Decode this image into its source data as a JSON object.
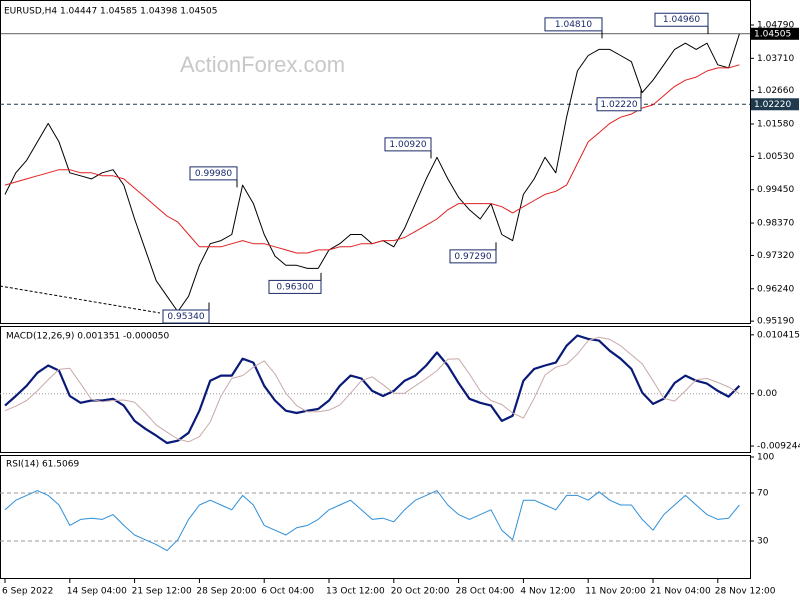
{
  "chart_data": [
    {
      "type": "line",
      "title": "EURUSD,H4  1.04447 1.04585 1.04398 1.04505",
      "watermark": "ActionForex.com",
      "ylim": [
        0.9513,
        1.056
      ],
      "yticks": [
        {
          "value": 0.9519,
          "label": "0.95190"
        },
        {
          "value": 0.9624,
          "label": "0.96240"
        },
        {
          "value": 0.9732,
          "label": "0.97320"
        },
        {
          "value": 0.9837,
          "label": "0.98370"
        },
        {
          "value": 0.9945,
          "label": "0.99450"
        },
        {
          "value": 1.0053,
          "label": "1.00530"
        },
        {
          "value": 1.0158,
          "label": "1.01580"
        },
        {
          "value": 1.0266,
          "label": "1.02660"
        },
        {
          "value": 1.0371,
          "label": "1.03710"
        },
        {
          "value": 1.0479,
          "label": "1.04790"
        }
      ],
      "levels": [
        {
          "value": 1.04505,
          "label": "1.04505",
          "color": "#000000",
          "style": "solid"
        },
        {
          "value": 1.0222,
          "label": "1.02220",
          "color": "#1e3a4c",
          "style": "dashed"
        }
      ],
      "annotations": [
        {
          "value": 1.0481,
          "label": "1.04810"
        },
        {
          "value": 1.0496,
          "label": "1.04960"
        },
        {
          "value": 1.0222,
          "label": "1.02220"
        },
        {
          "value": 1.0092,
          "label": "1.00920"
        },
        {
          "value": 0.9998,
          "label": "0.99980"
        },
        {
          "value": 0.9729,
          "label": "0.97290"
        },
        {
          "value": 0.963,
          "label": "0.96300"
        },
        {
          "value": 0.9534,
          "label": "0.95340"
        }
      ],
      "series": [
        {
          "color": "#000000",
          "values": [
            0.993,
            1.0,
            1.004,
            1.01,
            1.016,
            1.01,
            1.0,
            0.999,
            0.998,
            1.0,
            1.001,
            0.996,
            0.985,
            0.975,
            0.965,
            0.96,
            0.955,
            0.96,
            0.97,
            0.977,
            0.978,
            0.98,
            0.996,
            0.99,
            0.98,
            0.973,
            0.97,
            0.97,
            0.969,
            0.969,
            0.975,
            0.977,
            0.98,
            0.98,
            0.977,
            0.978,
            0.976,
            0.982,
            0.99,
            0.998,
            1.005,
            0.998,
            0.992,
            0.988,
            0.985,
            0.99,
            0.98,
            0.978,
            0.993,
            0.998,
            1.005,
            1.0,
            1.018,
            1.033,
            1.038,
            1.04,
            1.04,
            1.038,
            1.036,
            1.026,
            1.03,
            1.035,
            1.04,
            1.042,
            1.04,
            1.042,
            1.035,
            1.034,
            1.045
          ]
        },
        {
          "color": "#e02020",
          "values": [
            0.996,
            0.997,
            0.998,
            0.999,
            1.0,
            1.001,
            1.001,
            1.0,
            1.0,
            0.999,
            0.999,
            0.998,
            0.995,
            0.992,
            0.989,
            0.986,
            0.984,
            0.98,
            0.976,
            0.976,
            0.976,
            0.977,
            0.978,
            0.977,
            0.977,
            0.976,
            0.975,
            0.974,
            0.974,
            0.975,
            0.975,
            0.976,
            0.976,
            0.977,
            0.977,
            0.978,
            0.978,
            0.979,
            0.981,
            0.983,
            0.985,
            0.988,
            0.99,
            0.99,
            0.99,
            0.99,
            0.989,
            0.987,
            0.989,
            0.991,
            0.993,
            0.994,
            0.996,
            1.003,
            1.01,
            1.013,
            1.016,
            1.018,
            1.019,
            1.021,
            1.022,
            1.025,
            1.028,
            1.03,
            1.031,
            1.033,
            1.034,
            1.034,
            1.035
          ]
        }
      ]
    },
    {
      "type": "line",
      "title": "MACD(12,26,9) 0.001351 -0.000050",
      "ylim": [
        -0.0103,
        0.0118
      ],
      "yticks": [
        0.010415,
        {
          "value": 0,
          "label": "0.00"
        },
        -0.009244
      ],
      "levels": [
        {
          "value": 0,
          "color": "#9a9a9a",
          "style": "dotted"
        }
      ],
      "series": [
        {
          "color": "#0a1a78",
          "width": 2.2,
          "values": [
            -0.0021,
            -0.0004,
            0.0014,
            0.0037,
            0.005,
            0.0041,
            -0.0004,
            -0.0016,
            -0.0012,
            -0.0012,
            -0.0009,
            -0.0021,
            -0.0048,
            -0.0062,
            -0.0074,
            -0.0087,
            -0.0083,
            -0.0069,
            -0.003,
            0.0023,
            0.0032,
            0.0032,
            0.0062,
            0.0055,
            0.0014,
            -0.0012,
            -0.003,
            -0.0034,
            -0.003,
            -0.0027,
            -0.0012,
            0.0014,
            0.0032,
            0.0027,
            0.0005,
            -0.0004,
            0.0005,
            0.0023,
            0.0032,
            0.005,
            0.0073,
            0.005,
            0.0019,
            -0.0009,
            -0.0016,
            -0.0021,
            -0.0048,
            -0.0039,
            0.0023,
            0.0044,
            0.005,
            0.0055,
            0.0085,
            0.0103,
            0.0097,
            0.0094,
            0.0076,
            0.0062,
            0.0044,
            0.0002,
            -0.0018,
            -0.0009,
            0.0019,
            0.0032,
            0.0023,
            0.0018,
            0.0005,
            -0.0005,
            0.0014
          ]
        },
        {
          "color": "#c9a9a9",
          "width": 1,
          "values": [
            -0.003,
            -0.0022,
            -0.0012,
            0.0005,
            0.0025,
            0.0043,
            0.0045,
            0.0018,
            -0.001,
            -0.0014,
            -0.0012,
            -0.0011,
            -0.0015,
            -0.0034,
            -0.0055,
            -0.0068,
            -0.008,
            -0.0085,
            -0.0076,
            -0.005,
            -0.0004,
            0.0027,
            0.0032,
            0.0047,
            0.0058,
            0.0035,
            0.0001,
            -0.0021,
            -0.0032,
            -0.0032,
            -0.0029,
            -0.002,
            0.0001,
            0.0023,
            0.003,
            0.0016,
            0.0001,
            0.0001,
            0.0014,
            0.0027,
            0.0041,
            0.0061,
            0.0062,
            0.0035,
            0.0005,
            -0.0012,
            -0.0019,
            -0.0034,
            -0.0043,
            -0.0008,
            0.0033,
            0.0047,
            0.0052,
            0.007,
            0.0094,
            0.01,
            0.0096,
            0.0085,
            0.0069,
            0.0053,
            0.0023,
            -0.0008,
            -0.0013,
            0.0005,
            0.0025,
            0.0027,
            0.002,
            0.0012,
            0.0
          ]
        }
      ]
    },
    {
      "type": "line",
      "title": "RSI(14) 61.5069",
      "ylim": [
        0,
        100
      ],
      "yticks": [
        30,
        70,
        100
      ],
      "levels": [
        {
          "value": 30,
          "color": "#9a9a9a",
          "style": "dashed"
        },
        {
          "value": 70,
          "color": "#9a9a9a",
          "style": "dashed"
        }
      ],
      "categories": [
        "6 Sep 2022",
        null,
        null,
        null,
        null,
        null,
        "14 Sep 04:00",
        null,
        null,
        null,
        null,
        null,
        "21 Sep 12:00",
        null,
        null,
        null,
        null,
        null,
        "28 Sep 20:00",
        null,
        null,
        null,
        null,
        null,
        "6 Oct 04:00",
        null,
        null,
        null,
        null,
        null,
        "13 Oct 12:00",
        null,
        null,
        null,
        null,
        null,
        "20 Oct 20:00",
        null,
        null,
        null,
        null,
        null,
        "28 Oct 04:00",
        null,
        null,
        null,
        null,
        null,
        "4 Nov 12:00",
        null,
        null,
        null,
        null,
        null,
        "11 Nov 20:00",
        null,
        null,
        null,
        null,
        null,
        "21 Nov 04:00",
        null,
        null,
        null,
        null,
        null,
        "28 Nov 12:00",
        null,
        null
      ],
      "series": [
        {
          "color": "#2f8fd8",
          "width": 1,
          "values": [
            56,
            64,
            68,
            72,
            68,
            60,
            43,
            48,
            49,
            48,
            52,
            43,
            35,
            31,
            27,
            22,
            31,
            48,
            60,
            64,
            60,
            56,
            68,
            60,
            43,
            39,
            35,
            41,
            43,
            48,
            56,
            60,
            64,
            56,
            48,
            49,
            46,
            56,
            64,
            68,
            72,
            60,
            52,
            48,
            52,
            56,
            39,
            31,
            64,
            64,
            60,
            56,
            68,
            68,
            64,
            71,
            64,
            60,
            60,
            48,
            39,
            52,
            60,
            68,
            60,
            52,
            48,
            49,
            60
          ]
        }
      ]
    }
  ]
}
